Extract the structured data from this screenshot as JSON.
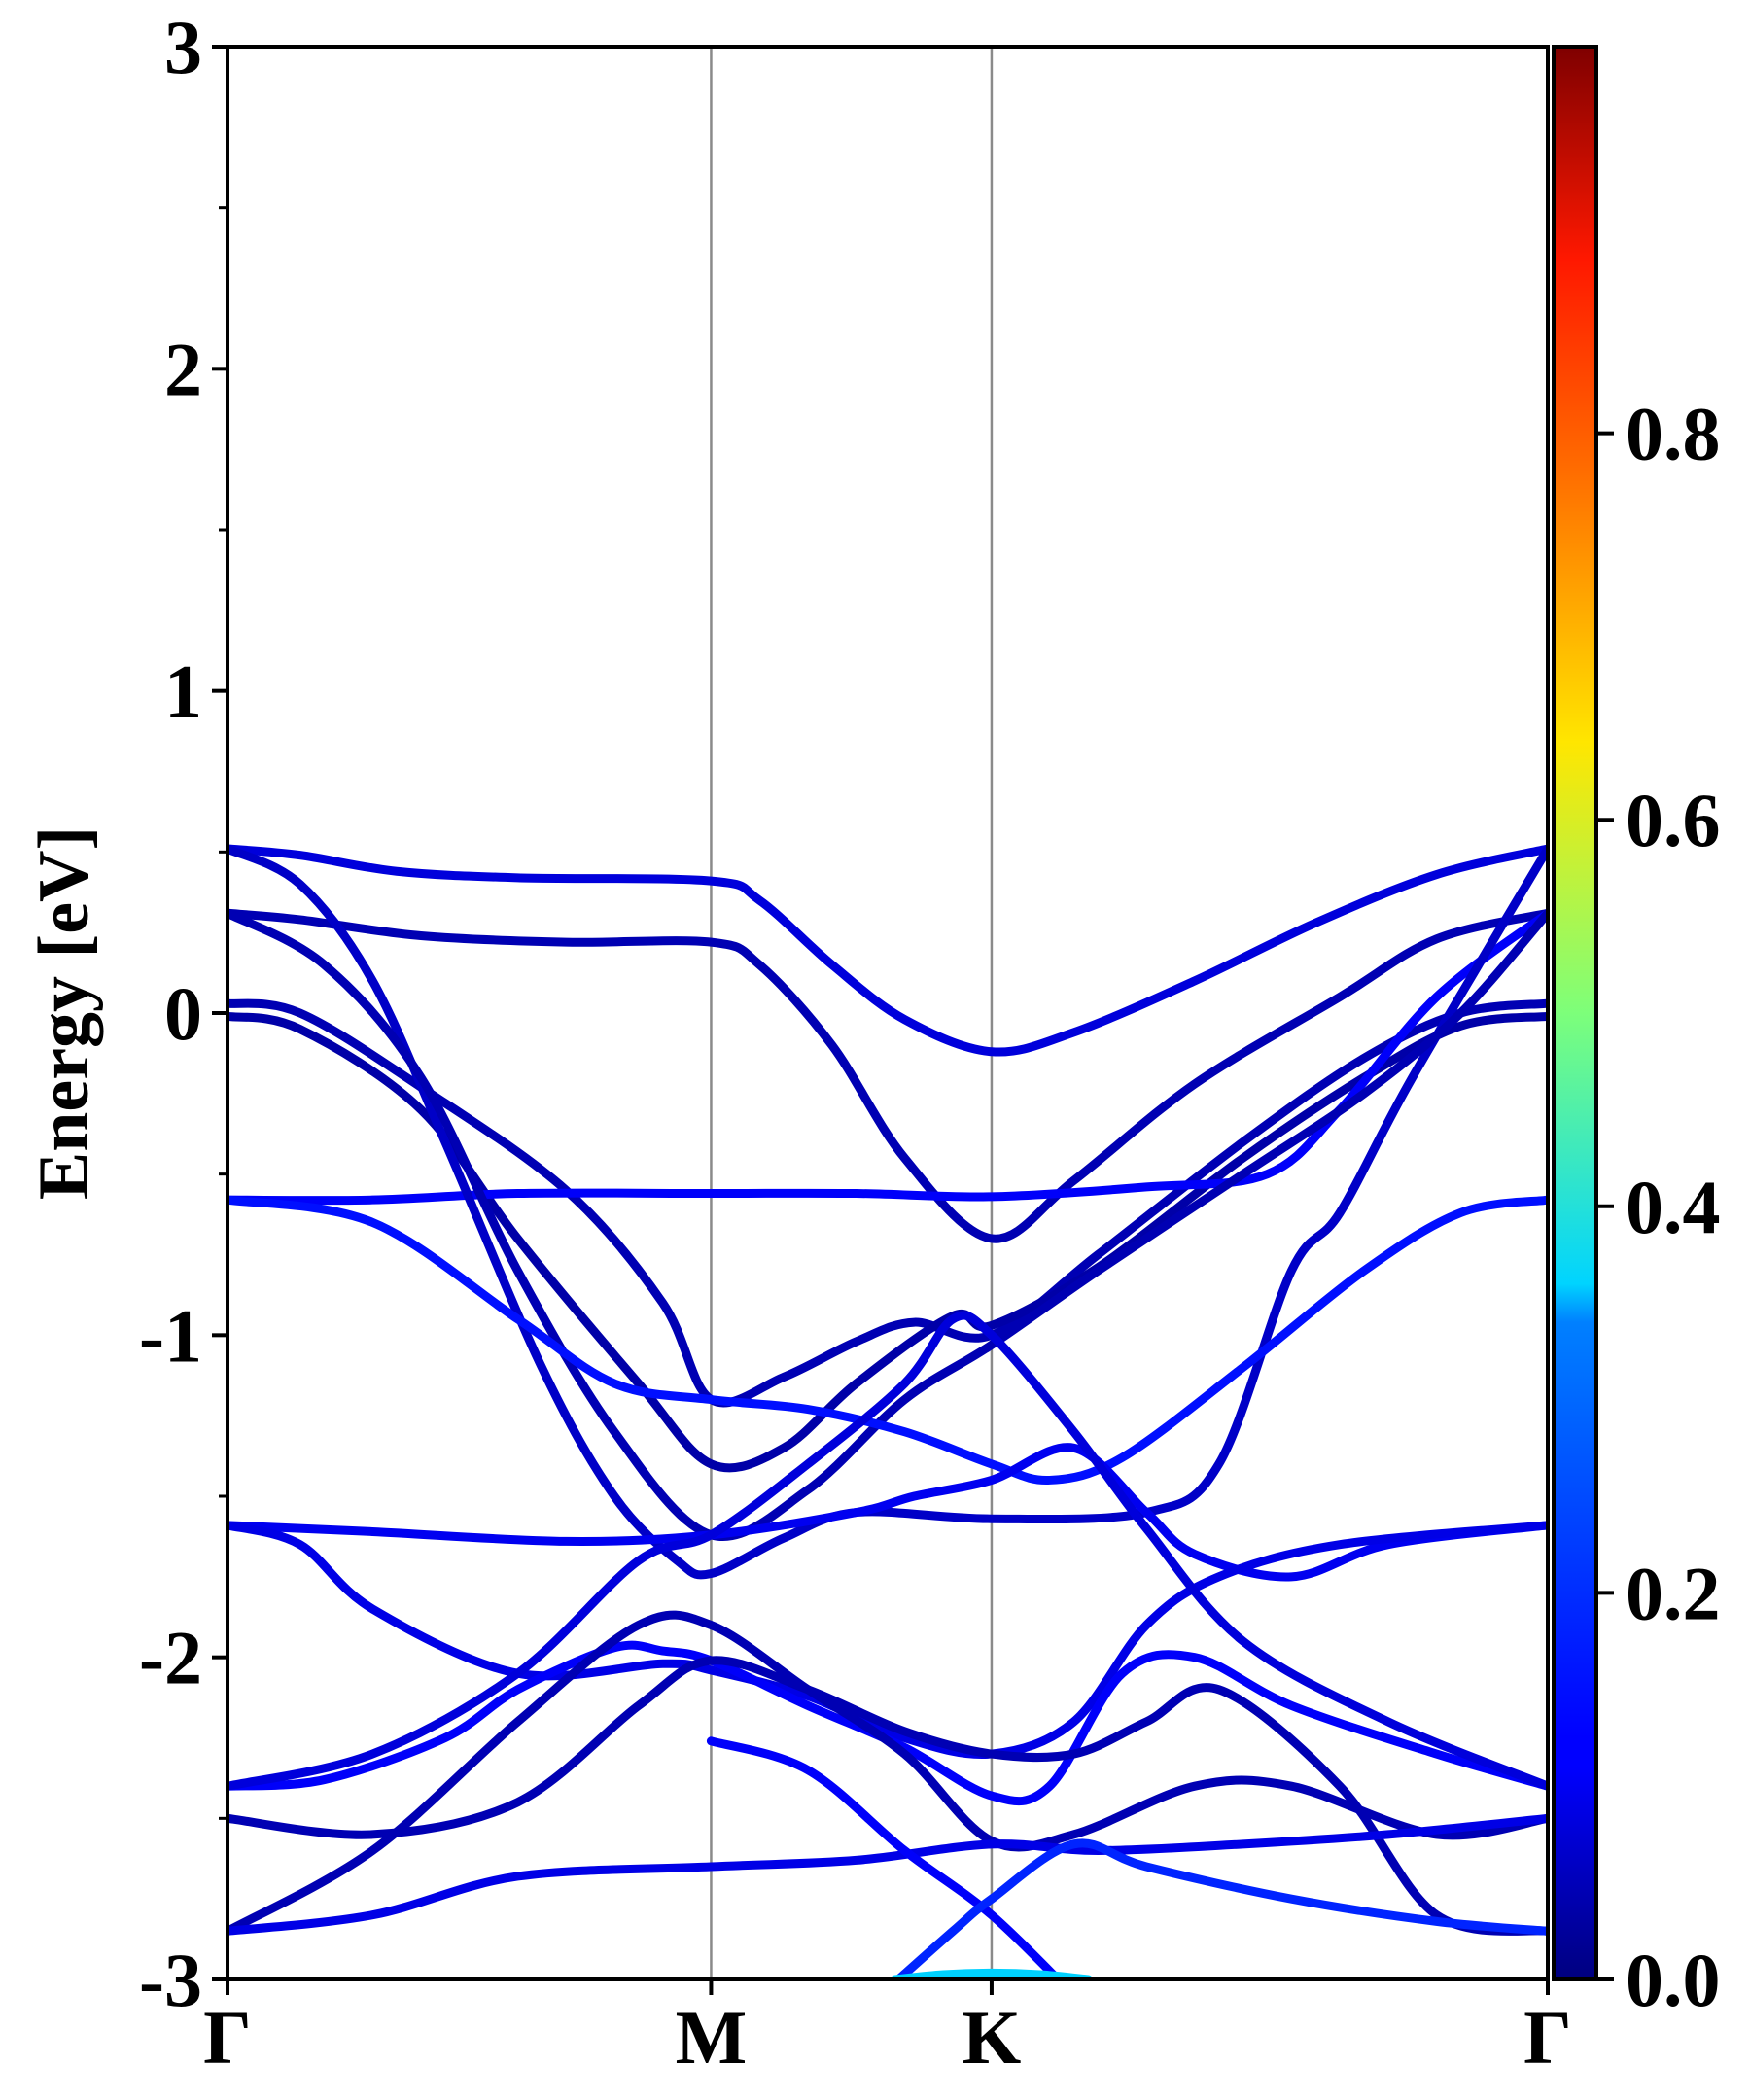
{
  "chart_data": {
    "type": "line",
    "title": "",
    "xlabel": "",
    "ylabel": "Energy [eV]",
    "ylim": [
      -3,
      3
    ],
    "yticks": [
      "3",
      "2",
      "1",
      "0",
      "-1",
      "-2",
      "-3"
    ],
    "yticks_values": [
      3,
      2,
      1,
      0,
      -1,
      -2,
      -3
    ],
    "x_positions": [
      0,
      1.0,
      1.58,
      2.73
    ],
    "x_labels": [
      "Γ",
      "M",
      "K",
      "Γ"
    ],
    "grid": "vertical lines at high-symmetry points",
    "colorbar": {
      "colormap": "jet",
      "range": [
        0.0,
        1.0
      ],
      "ticks": [
        "0.0",
        "0.2",
        "0.4",
        "0.6",
        "0.8"
      ],
      "tick_values": [
        0.0,
        0.2,
        0.4,
        0.6,
        0.8
      ]
    },
    "bands": [
      {
        "weight": 0.09,
        "points": [
          [
            0,
            0.51
          ],
          [
            0.15,
            0.49
          ],
          [
            0.35,
            0.44
          ],
          [
            0.6,
            0.42
          ],
          [
            1.0,
            0.41
          ],
          [
            1.1,
            0.35
          ],
          [
            1.25,
            0.15
          ],
          [
            1.4,
            -0.02
          ],
          [
            1.58,
            -0.12
          ],
          [
            1.75,
            -0.06
          ],
          [
            2.0,
            0.1
          ],
          [
            2.25,
            0.28
          ],
          [
            2.5,
            0.43
          ],
          [
            2.73,
            0.51
          ]
        ]
      },
      {
        "weight": 0.05,
        "points": [
          [
            0,
            0.31
          ],
          [
            0.15,
            0.29
          ],
          [
            0.4,
            0.24
          ],
          [
            0.7,
            0.22
          ],
          [
            1.0,
            0.22
          ],
          [
            1.1,
            0.15
          ],
          [
            1.25,
            -0.1
          ],
          [
            1.4,
            -0.45
          ],
          [
            1.58,
            -0.7
          ],
          [
            1.75,
            -0.52
          ],
          [
            2.0,
            -0.22
          ],
          [
            2.3,
            0.05
          ],
          [
            2.5,
            0.23
          ],
          [
            2.73,
            0.31
          ]
        ]
      },
      {
        "weight": 0.05,
        "points": [
          [
            0,
            0.03
          ],
          [
            0.15,
            0.0
          ],
          [
            0.4,
            -0.23
          ],
          [
            0.7,
            -0.55
          ],
          [
            0.9,
            -0.9
          ],
          [
            1.0,
            -1.2
          ],
          [
            1.15,
            -1.13
          ],
          [
            1.3,
            -1.02
          ],
          [
            1.42,
            -0.96
          ],
          [
            1.58,
            -1.0
          ],
          [
            1.8,
            -0.75
          ],
          [
            2.1,
            -0.4
          ],
          [
            2.35,
            -0.14
          ],
          [
            2.55,
            0.0
          ],
          [
            2.73,
            0.03
          ]
        ]
      },
      {
        "weight": 0.04,
        "points": [
          [
            0,
            -0.01
          ],
          [
            0.15,
            -0.05
          ],
          [
            0.4,
            -0.3
          ],
          [
            0.6,
            -0.7
          ],
          [
            0.85,
            -1.15
          ],
          [
            1.0,
            -1.4
          ],
          [
            1.15,
            -1.35
          ],
          [
            1.3,
            -1.15
          ],
          [
            1.5,
            -0.94
          ],
          [
            1.58,
            -0.97
          ],
          [
            1.8,
            -0.79
          ],
          [
            2.1,
            -0.45
          ],
          [
            2.35,
            -0.2
          ],
          [
            2.55,
            -0.04
          ],
          [
            2.73,
            -0.01
          ]
        ]
      },
      {
        "weight": 0.12,
        "points": [
          [
            0,
            -0.58
          ],
          [
            0.3,
            -0.58
          ],
          [
            0.6,
            -0.56
          ],
          [
            1.0,
            -0.56
          ],
          [
            1.3,
            -0.56
          ],
          [
            1.58,
            -0.57
          ],
          [
            1.9,
            -0.54
          ],
          [
            2.15,
            -0.5
          ],
          [
            2.3,
            -0.3
          ],
          [
            2.5,
            0.05
          ],
          [
            2.73,
            0.31
          ]
        ]
      },
      {
        "weight": 0.07,
        "points": [
          [
            0,
            0.51
          ],
          [
            0.15,
            0.4
          ],
          [
            0.3,
            0.1
          ],
          [
            0.45,
            -0.4
          ],
          [
            0.65,
            -1.1
          ],
          [
            0.8,
            -1.5
          ],
          [
            0.93,
            -1.7
          ],
          [
            1.0,
            -1.74
          ],
          [
            1.15,
            -1.63
          ],
          [
            1.3,
            -1.55
          ],
          [
            1.58,
            -1.57
          ],
          [
            1.9,
            -1.55
          ],
          [
            2.05,
            -1.4
          ],
          [
            2.2,
            -0.8
          ],
          [
            2.3,
            -0.62
          ],
          [
            2.45,
            -0.2
          ],
          [
            2.73,
            0.51
          ]
        ]
      },
      {
        "weight": 0.05,
        "points": [
          [
            0,
            0.31
          ],
          [
            0.2,
            0.15
          ],
          [
            0.4,
            -0.2
          ],
          [
            0.6,
            -0.8
          ],
          [
            0.8,
            -1.3
          ],
          [
            1.0,
            -1.62
          ],
          [
            1.2,
            -1.48
          ],
          [
            1.4,
            -1.2
          ],
          [
            1.58,
            -1.03
          ],
          [
            1.8,
            -0.8
          ],
          [
            2.1,
            -0.5
          ],
          [
            2.35,
            -0.25
          ],
          [
            2.55,
            0.0
          ],
          [
            2.73,
            0.31
          ]
        ]
      },
      {
        "weight": 0.14,
        "points": [
          [
            0,
            -0.58
          ],
          [
            0.3,
            -0.65
          ],
          [
            0.6,
            -0.95
          ],
          [
            0.8,
            -1.15
          ],
          [
            1.0,
            -1.2
          ],
          [
            1.2,
            -1.23
          ],
          [
            1.4,
            -1.3
          ],
          [
            1.58,
            -1.4
          ],
          [
            1.7,
            -1.45
          ],
          [
            1.85,
            -1.38
          ],
          [
            2.1,
            -1.1
          ],
          [
            2.35,
            -0.8
          ],
          [
            2.55,
            -0.62
          ],
          [
            2.73,
            -0.58
          ]
        ]
      },
      {
        "weight": 0.11,
        "points": [
          [
            0,
            -1.59
          ],
          [
            0.3,
            -1.61
          ],
          [
            0.7,
            -1.64
          ],
          [
            1.0,
            -1.62
          ],
          [
            1.3,
            -1.55
          ],
          [
            1.42,
            -1.5
          ],
          [
            1.58,
            -1.45
          ],
          [
            1.75,
            -1.35
          ],
          [
            1.9,
            -1.55
          ],
          [
            2.0,
            -1.68
          ],
          [
            2.2,
            -1.75
          ],
          [
            2.4,
            -1.65
          ],
          [
            2.73,
            -1.59
          ]
        ]
      },
      {
        "weight": 0.1,
        "points": [
          [
            0,
            -1.59
          ],
          [
            0.15,
            -1.65
          ],
          [
            0.3,
            -1.85
          ],
          [
            0.6,
            -2.05
          ],
          [
            0.9,
            -2.02
          ],
          [
            1.0,
            -2.04
          ],
          [
            1.2,
            -2.12
          ],
          [
            1.4,
            -2.25
          ],
          [
            1.58,
            -2.3
          ],
          [
            1.75,
            -2.2
          ],
          [
            1.9,
            -1.9
          ],
          [
            2.05,
            -1.75
          ],
          [
            2.3,
            -1.65
          ],
          [
            2.73,
            -1.59
          ]
        ]
      },
      {
        "weight": 0.12,
        "points": [
          [
            0,
            -2.4
          ],
          [
            0.2,
            -2.38
          ],
          [
            0.45,
            -2.25
          ],
          [
            0.6,
            -2.1
          ],
          [
            0.8,
            -1.97
          ],
          [
            0.9,
            -1.98
          ],
          [
            1.0,
            -2.01
          ],
          [
            1.2,
            -2.15
          ],
          [
            1.4,
            -2.28
          ],
          [
            1.58,
            -2.43
          ],
          [
            1.7,
            -2.4
          ],
          [
            1.85,
            -2.05
          ],
          [
            2.0,
            -2.0
          ],
          [
            2.2,
            -2.15
          ],
          [
            2.5,
            -2.3
          ],
          [
            2.73,
            -2.4
          ]
        ]
      },
      {
        "weight": 0.09,
        "points": [
          [
            0,
            -2.4
          ],
          [
            0.3,
            -2.3
          ],
          [
            0.6,
            -2.05
          ],
          [
            0.85,
            -1.7
          ],
          [
            1.0,
            -1.62
          ],
          [
            1.2,
            -1.4
          ],
          [
            1.4,
            -1.15
          ],
          [
            1.5,
            -0.95
          ],
          [
            1.58,
            -1.0
          ],
          [
            1.75,
            -1.3
          ],
          [
            1.9,
            -1.6
          ],
          [
            2.1,
            -1.95
          ],
          [
            2.4,
            -2.2
          ],
          [
            2.73,
            -2.4
          ]
        ]
      },
      {
        "weight": 0.05,
        "points": [
          [
            0,
            -2.5
          ],
          [
            0.3,
            -2.55
          ],
          [
            0.6,
            -2.45
          ],
          [
            0.85,
            -2.15
          ],
          [
            1.0,
            -2.01
          ],
          [
            1.2,
            -2.1
          ],
          [
            1.4,
            -2.23
          ],
          [
            1.58,
            -2.3
          ],
          [
            1.75,
            -2.3
          ],
          [
            1.9,
            -2.2
          ],
          [
            2.05,
            -2.1
          ],
          [
            2.3,
            -2.4
          ],
          [
            2.5,
            -2.8
          ],
          [
            2.73,
            -2.85
          ]
        ]
      },
      {
        "weight": 0.05,
        "points": [
          [
            0,
            -2.85
          ],
          [
            0.3,
            -2.6
          ],
          [
            0.6,
            -2.2
          ],
          [
            0.85,
            -1.9
          ],
          [
            1.0,
            -1.9
          ],
          [
            1.2,
            -2.1
          ],
          [
            1.4,
            -2.3
          ],
          [
            1.58,
            -2.57
          ],
          [
            1.75,
            -2.55
          ],
          [
            2.0,
            -2.4
          ],
          [
            2.2,
            -2.4
          ],
          [
            2.5,
            -2.55
          ],
          [
            2.73,
            -2.5
          ]
        ]
      },
      {
        "weight": 0.1,
        "points": [
          [
            0,
            -2.85
          ],
          [
            0.3,
            -2.8
          ],
          [
            0.6,
            -2.68
          ],
          [
            1.0,
            -2.65
          ],
          [
            1.3,
            -2.63
          ],
          [
            1.58,
            -2.58
          ],
          [
            1.8,
            -2.6
          ],
          [
            2.1,
            -2.58
          ],
          [
            2.4,
            -2.55
          ],
          [
            2.73,
            -2.5
          ]
        ]
      },
      {
        "weight": 0.12,
        "points": [
          [
            1.0,
            -2.26
          ],
          [
            1.2,
            -2.35
          ],
          [
            1.4,
            -2.6
          ],
          [
            1.58,
            -2.8
          ],
          [
            1.75,
            -3.05
          ]
        ]
      },
      {
        "weight": 0.16,
        "points": [
          [
            1.35,
            -3.05
          ],
          [
            1.5,
            -2.85
          ],
          [
            1.58,
            -2.75
          ],
          [
            1.75,
            -2.58
          ],
          [
            1.9,
            -2.65
          ],
          [
            2.2,
            -2.75
          ],
          [
            2.5,
            -2.82
          ],
          [
            2.73,
            -2.85
          ]
        ]
      },
      {
        "weight": 0.33,
        "points": [
          [
            1.38,
            -3.0
          ],
          [
            1.48,
            -2.985
          ],
          [
            1.58,
            -2.98
          ],
          [
            1.68,
            -2.985
          ],
          [
            1.78,
            -3.0
          ]
        ]
      }
    ]
  }
}
